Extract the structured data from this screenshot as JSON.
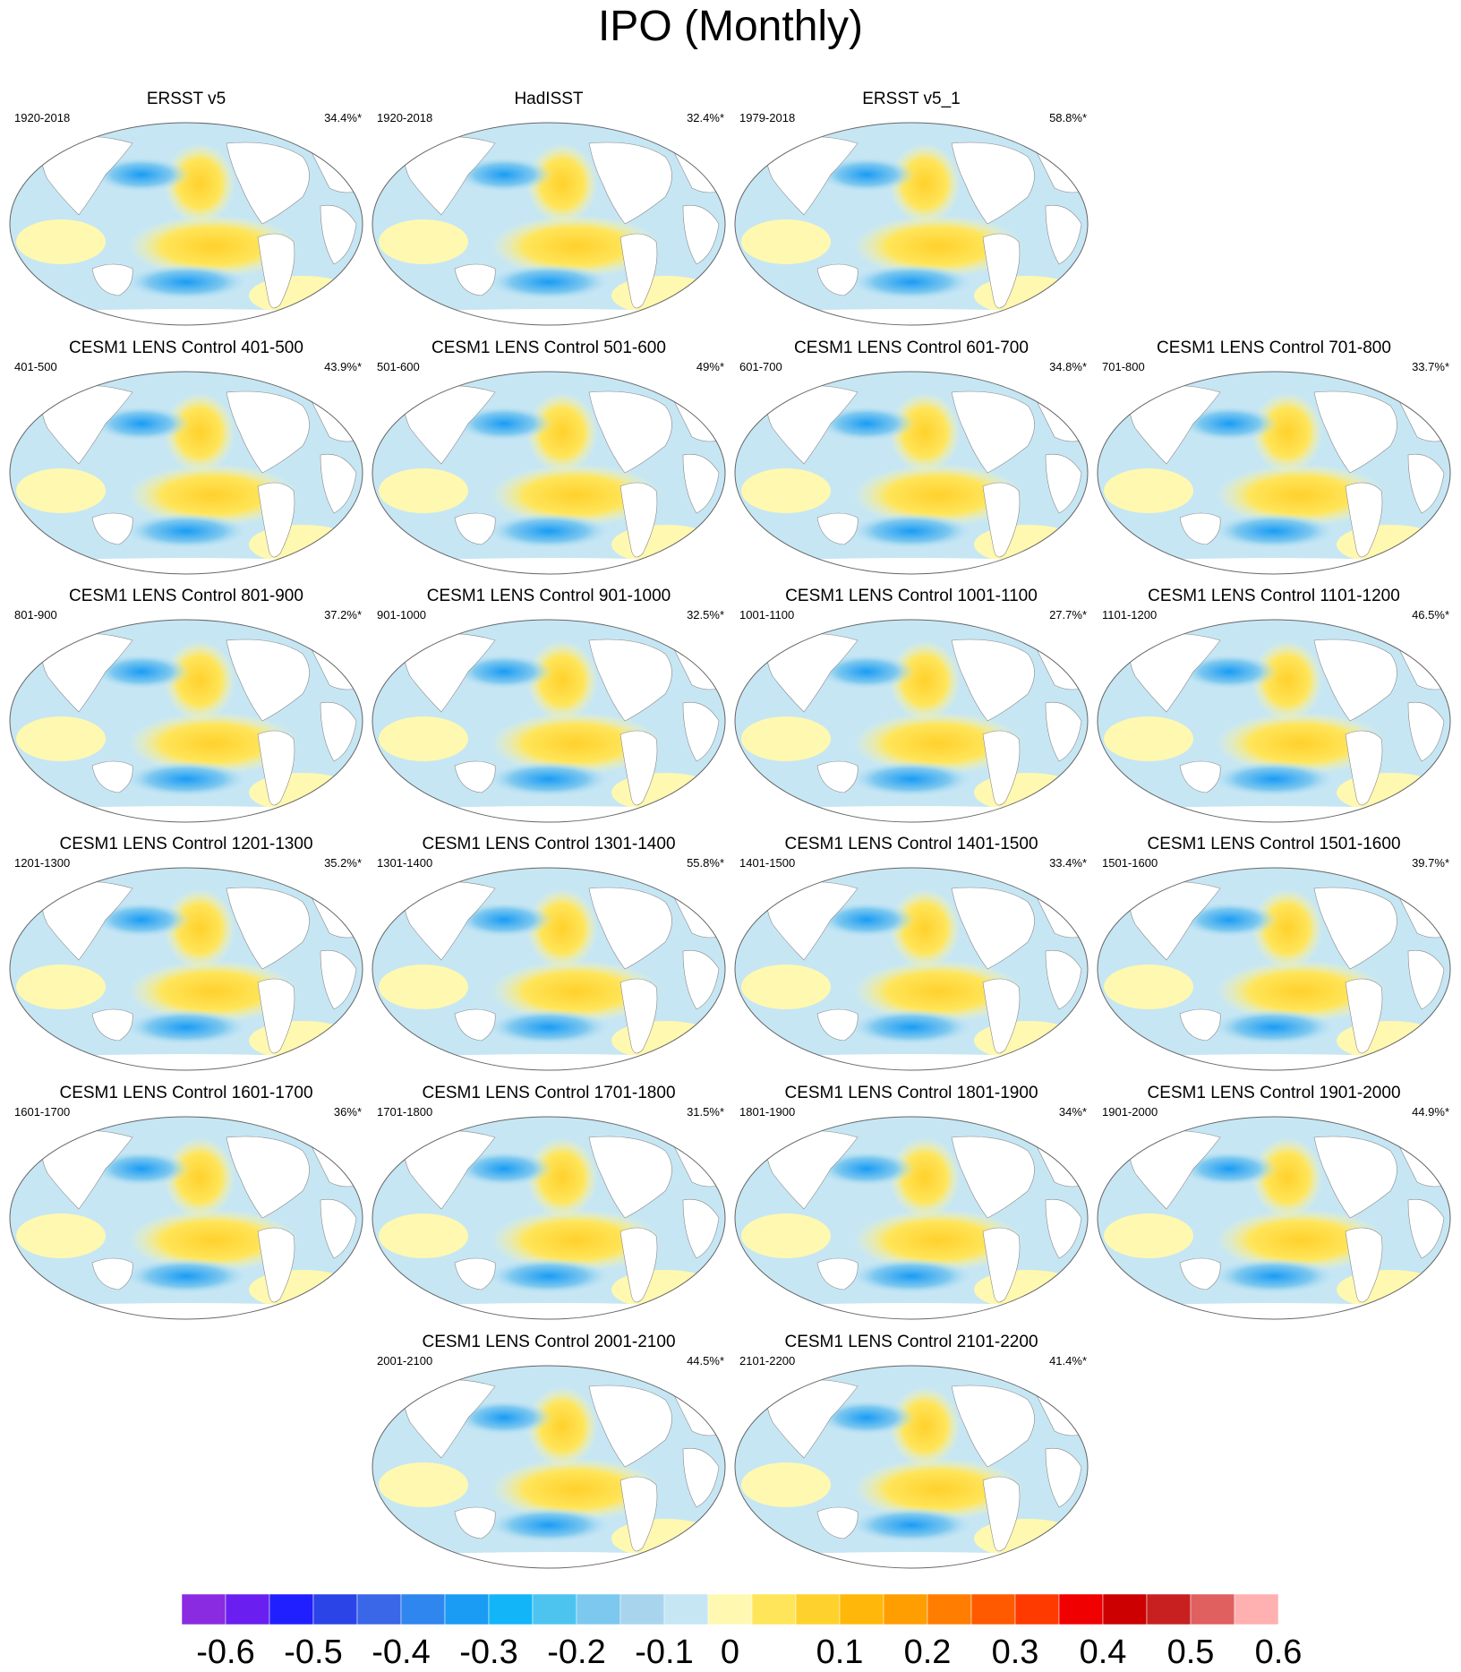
{
  "title": "IPO (Monthly)",
  "panels": [
    {
      "title": "ERSST v5",
      "period": "1920-2018",
      "percent": "34.4%*"
    },
    {
      "title": "HadISST",
      "period": "1920-2018",
      "percent": "32.4%*"
    },
    {
      "title": "ERSST v5_1",
      "period": "1979-2018",
      "percent": "58.8%*"
    },
    {
      "title": "CESM1 LENS Control 401-500",
      "period": "401-500",
      "percent": "43.9%*"
    },
    {
      "title": "CESM1 LENS Control 501-600",
      "period": "501-600",
      "percent": "49%*"
    },
    {
      "title": "CESM1 LENS Control 601-700",
      "period": "601-700",
      "percent": "34.8%*"
    },
    {
      "title": "CESM1 LENS Control 701-800",
      "period": "701-800",
      "percent": "33.7%*"
    },
    {
      "title": "CESM1 LENS Control 801-900",
      "period": "801-900",
      "percent": "37.2%*"
    },
    {
      "title": "CESM1 LENS Control 901-1000",
      "period": "901-1000",
      "percent": "32.5%*"
    },
    {
      "title": "CESM1 LENS Control 1001-1100",
      "period": "1001-1100",
      "percent": "27.7%*"
    },
    {
      "title": "CESM1 LENS Control 1101-1200",
      "period": "1101-1200",
      "percent": "46.5%*"
    },
    {
      "title": "CESM1 LENS Control 1201-1300",
      "period": "1201-1300",
      "percent": "35.2%*"
    },
    {
      "title": "CESM1 LENS Control 1301-1400",
      "period": "1301-1400",
      "percent": "55.8%*"
    },
    {
      "title": "CESM1 LENS Control 1401-1500",
      "period": "1401-1500",
      "percent": "33.4%*"
    },
    {
      "title": "CESM1 LENS Control 1501-1600",
      "period": "1501-1600",
      "percent": "39.7%*"
    },
    {
      "title": "CESM1 LENS Control 1601-1700",
      "period": "1601-1700",
      "percent": "36%*"
    },
    {
      "title": "CESM1 LENS Control 1701-1800",
      "period": "1701-1800",
      "percent": "31.5%*"
    },
    {
      "title": "CESM1 LENS Control 1801-1900",
      "period": "1801-1900",
      "percent": "34%*"
    },
    {
      "title": "CESM1 LENS Control 1901-2000",
      "period": "1901-2000",
      "percent": "44.9%*"
    },
    {
      "title": "CESM1 LENS Control 2001-2100",
      "period": "2001-2100",
      "percent": "44.5%*"
    },
    {
      "title": "CESM1 LENS Control 2101-2200",
      "period": "2101-2200",
      "percent": "41.4%*"
    }
  ],
  "colorbar": {
    "labels": [
      "-0.6",
      "-0.5",
      "-0.4",
      "-0.3",
      "-0.2",
      "-0.1",
      "0",
      "0.1",
      "0.2",
      "0.3",
      "0.4",
      "0.5",
      "0.6"
    ],
    "colors": [
      "#8a2be2",
      "#6a1ff0",
      "#1f1fff",
      "#2a44e8",
      "#3a66e8",
      "#2f86ef",
      "#1a9cf5",
      "#12b6f8",
      "#4cc4ef",
      "#7dc8ef",
      "#a8d4ee",
      "#c6e6f4",
      "#fff8b0",
      "#ffe55a",
      "#ffd12c",
      "#ffb80a",
      "#ff9e00",
      "#ff7d00",
      "#ff5a00",
      "#ff3a00",
      "#f00000",
      "#cc0000",
      "#c82020",
      "#e06060",
      "#ffb0b0"
    ]
  }
}
